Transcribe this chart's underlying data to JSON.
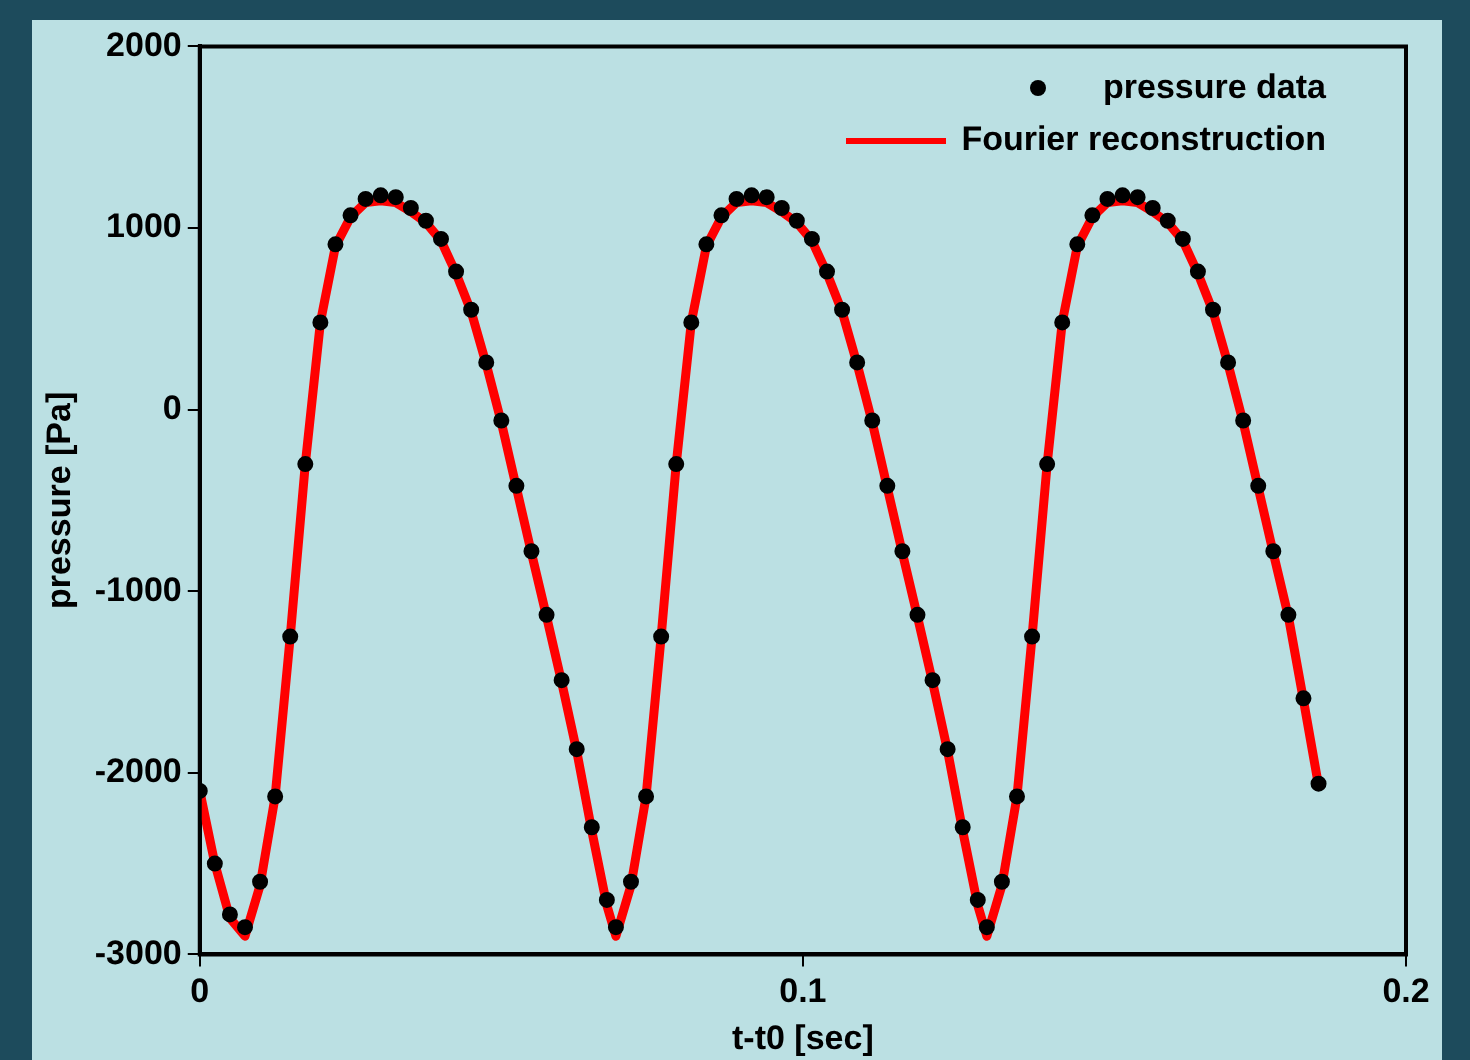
{
  "chart_data": {
    "type": "line",
    "xlabel": "t-t0 [sec]",
    "ylabel": "pressure [Pa]",
    "xlim": [
      0,
      0.2
    ],
    "xticks": [
      0,
      0.1,
      0.2
    ],
    "ylim": [
      -3000,
      2000
    ],
    "yticks": [
      -3000,
      -2000,
      -1000,
      0,
      1000,
      2000
    ],
    "grid": false,
    "legend": "top right",
    "series": [
      {
        "name": "pressure data",
        "type": "scatter",
        "marker": "circle",
        "color": "#000000",
        "x": [
          0,
          0.0025,
          0.005,
          0.0075,
          0.01,
          0.0125,
          0.015,
          0.0175,
          0.02,
          0.0225,
          0.025,
          0.0275,
          0.03,
          0.0325,
          0.035,
          0.0375,
          0.04,
          0.0425,
          0.045,
          0.0475,
          0.05,
          0.0525,
          0.055,
          0.0575,
          0.06,
          0.0625,
          0.065,
          0.0675,
          0.069,
          0.0715,
          0.074,
          0.0765,
          0.079,
          0.0815,
          0.084,
          0.0865,
          0.089,
          0.0915,
          0.094,
          0.0965,
          0.099,
          0.1015,
          0.104,
          0.1065,
          0.109,
          0.1115,
          0.114,
          0.1165,
          0.119,
          0.1215,
          0.124,
          0.1265,
          0.129,
          0.1305,
          0.133,
          0.1355,
          0.138,
          0.1405,
          0.143,
          0.1455,
          0.148,
          0.1505,
          0.153,
          0.1555,
          0.158,
          0.1605,
          0.163,
          0.1655,
          0.168,
          0.1705,
          0.173,
          0.1755,
          0.178,
          0.1805,
          0.183,
          0.1855
        ],
        "values": [
          -2100,
          -2500,
          -2780,
          -2850,
          -2600,
          -2130,
          -1250,
          -300,
          480,
          910,
          1070,
          1160,
          1180,
          1170,
          1110,
          1040,
          940,
          760,
          550,
          260,
          -60,
          -420,
          -780,
          -1130,
          -1490,
          -1870,
          -2300,
          -2700,
          -2850,
          -2600,
          -2130,
          -1250,
          -300,
          480,
          910,
          1070,
          1160,
          1180,
          1170,
          1110,
          1040,
          940,
          760,
          550,
          260,
          -60,
          -420,
          -780,
          -1130,
          -1490,
          -1870,
          -2300,
          -2700,
          -2850,
          -2600,
          -2130,
          -1250,
          -300,
          480,
          910,
          1070,
          1160,
          1180,
          1170,
          1110,
          1040,
          940,
          760,
          550,
          260,
          -60,
          -420,
          -780,
          -1130,
          -1590,
          -2060
        ]
      },
      {
        "name": "Fourier reconstruction",
        "line_style": "solid",
        "marker": "none",
        "color": "#ff0000",
        "x": [
          0,
          0.0025,
          0.005,
          0.0075,
          0.01,
          0.0125,
          0.015,
          0.0175,
          0.02,
          0.0225,
          0.025,
          0.0275,
          0.03,
          0.0325,
          0.035,
          0.0375,
          0.04,
          0.0425,
          0.045,
          0.0475,
          0.05,
          0.0525,
          0.055,
          0.0575,
          0.06,
          0.0625,
          0.065,
          0.0675,
          0.069,
          0.0715,
          0.074,
          0.0765,
          0.079,
          0.0815,
          0.084,
          0.0865,
          0.089,
          0.0915,
          0.094,
          0.0965,
          0.099,
          0.1015,
          0.104,
          0.1065,
          0.109,
          0.1115,
          0.114,
          0.1165,
          0.119,
          0.1215,
          0.124,
          0.1265,
          0.129,
          0.1305,
          0.133,
          0.1355,
          0.138,
          0.1405,
          0.143,
          0.1455,
          0.148,
          0.1505,
          0.153,
          0.1555,
          0.158,
          0.1605,
          0.163,
          0.1655,
          0.168,
          0.1705,
          0.173,
          0.1755,
          0.178,
          0.1805,
          0.183,
          0.1855
        ],
        "values": [
          -2100,
          -2500,
          -2800,
          -2900,
          -2620,
          -2130,
          -1250,
          -300,
          480,
          900,
          1060,
          1140,
          1150,
          1140,
          1090,
          1030,
          930,
          750,
          540,
          250,
          -70,
          -430,
          -790,
          -1140,
          -1500,
          -1880,
          -2320,
          -2730,
          -2900,
          -2620,
          -2130,
          -1250,
          -300,
          480,
          900,
          1060,
          1140,
          1150,
          1140,
          1090,
          1030,
          930,
          750,
          540,
          250,
          -70,
          -430,
          -790,
          -1140,
          -1500,
          -1880,
          -2320,
          -2730,
          -2900,
          -2620,
          -2130,
          -1250,
          -300,
          480,
          900,
          1060,
          1140,
          1150,
          1140,
          1090,
          1030,
          930,
          750,
          540,
          250,
          -70,
          -430,
          -790,
          -1140,
          -1600,
          -2070
        ]
      }
    ]
  }
}
